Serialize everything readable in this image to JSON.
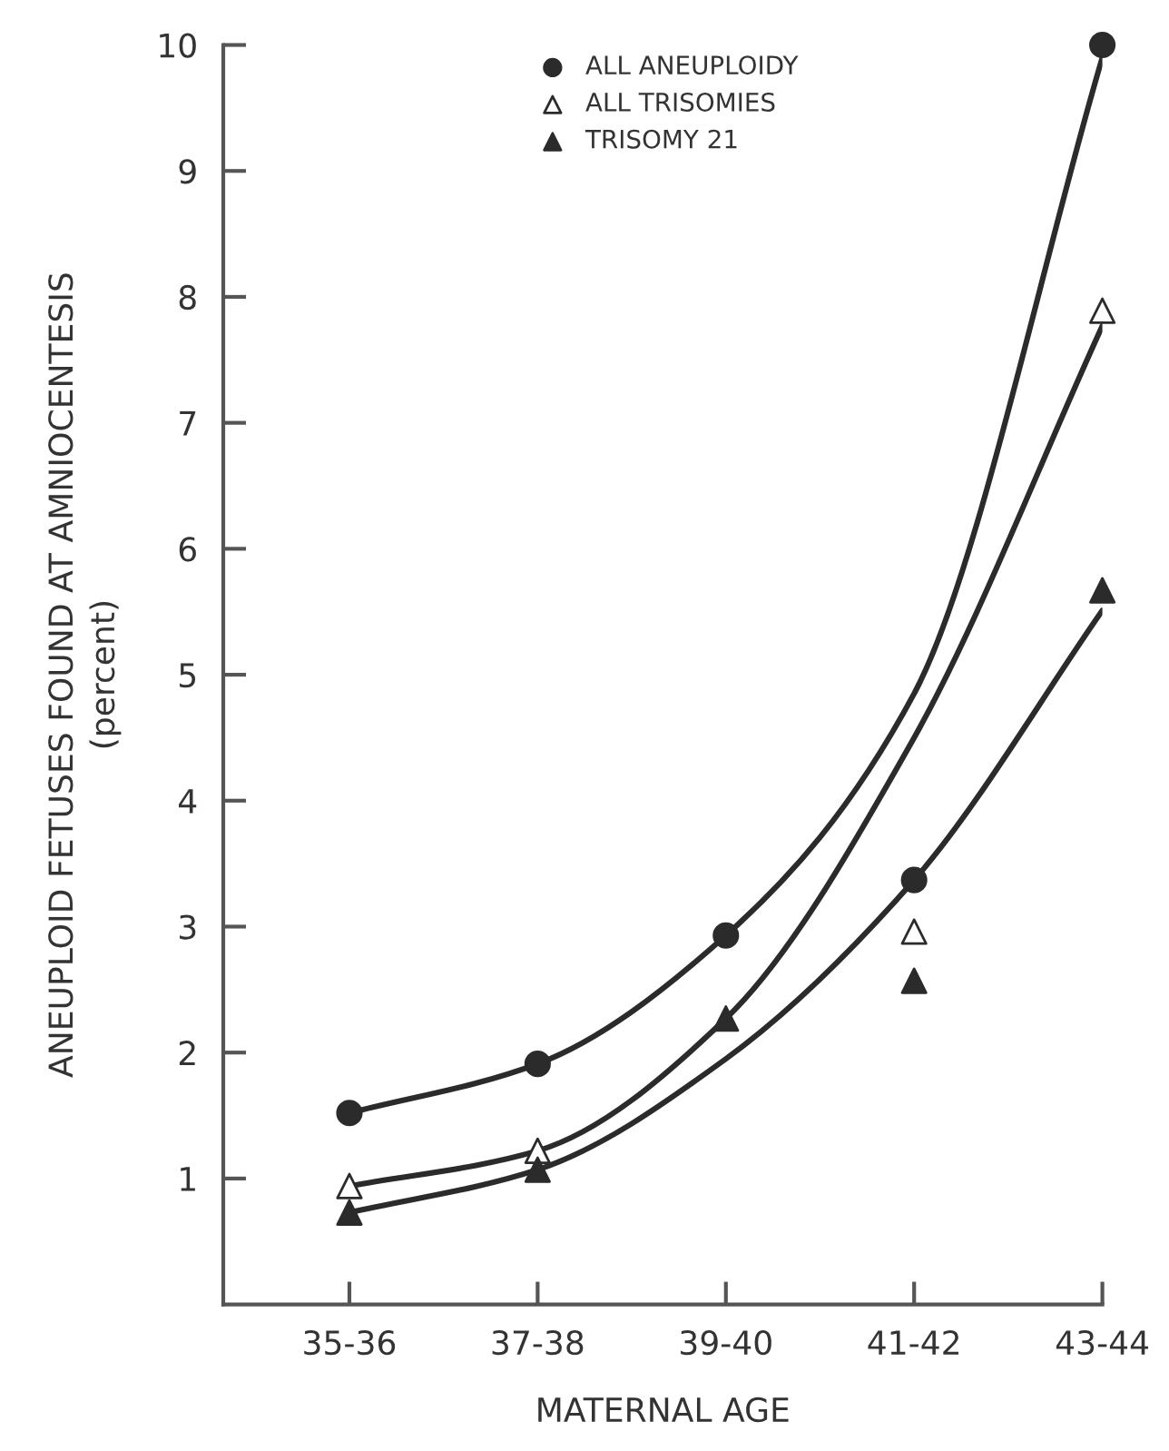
{
  "chart_data": {
    "type": "scatter",
    "xlabel": "MATERNAL AGE",
    "ylabel": "ANEUPLOID FETUSES FOUND AT AMNIOCENTESIS\n(percent)",
    "categories": [
      "35-36",
      "37-38",
      "39-40",
      "41-42",
      "43-44"
    ],
    "ylim": [
      0,
      10
    ],
    "yticks": [
      1,
      2,
      3,
      4,
      5,
      6,
      7,
      8,
      9,
      10
    ],
    "grid": false,
    "legend": "top",
    "series": [
      {
        "type": "line",
        "color": "#2b2b2b",
        "marker": "none",
        "line_style": "solid",
        "values": [
          1.52,
          1.91,
          2.93,
          4.85,
          9.9
        ]
      },
      {
        "type": "line",
        "color": "#2b2b2b",
        "marker": "none",
        "line_style": "solid",
        "values": [
          0.94,
          1.22,
          2.27,
          4.5,
          7.77
        ]
      },
      {
        "type": "line",
        "color": "#2b2b2b",
        "marker": "none",
        "line_style": "solid",
        "values": [
          0.73,
          1.07,
          1.95,
          3.37,
          5.51
        ]
      },
      {
        "name": "ALL ANEUPLOIDY",
        "color": "#2b2b2b",
        "marker": "circle",
        "values": [
          1.52,
          1.91,
          2.93,
          3.37,
          10.0
        ]
      },
      {
        "name": "ALL TRISOMIES",
        "color": "#ffffff",
        "marker": "triangle",
        "values": [
          0.94,
          1.22,
          null,
          2.96,
          7.89
        ]
      },
      {
        "name": "TRISOMY 21",
        "color": "#2b2b2b",
        "marker": "triangle",
        "values": [
          0.73,
          1.07,
          2.27,
          2.57,
          5.67
        ]
      }
    ]
  }
}
